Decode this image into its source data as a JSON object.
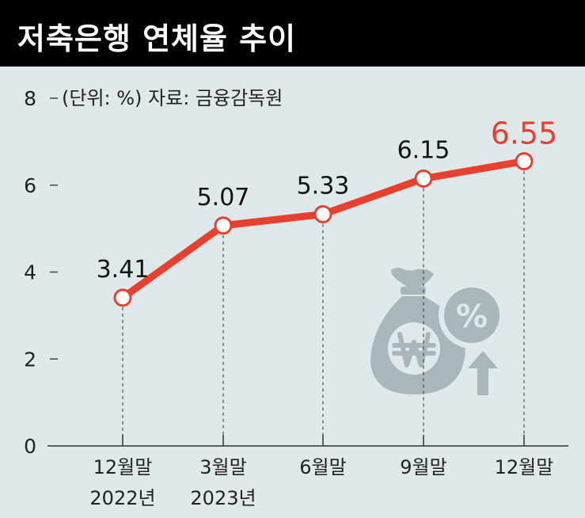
{
  "chart_data": {
    "type": "line",
    "title": "저축은행 연체율 추이",
    "subtitle": "(단위: %) 자료: 금융감독원",
    "categories": [
      [
        "12월말",
        "2022년"
      ],
      [
        "3월말",
        "2023년"
      ],
      [
        "6월말",
        ""
      ],
      [
        "9월말",
        ""
      ],
      [
        "12월말",
        ""
      ]
    ],
    "values": [
      3.41,
      5.07,
      5.33,
      6.15,
      6.55
    ],
    "value_labels": [
      "3.41",
      "5.07",
      "5.33",
      "6.15",
      "6.55"
    ],
    "yticks": [
      "0",
      "2",
      "4",
      "6",
      "8"
    ],
    "ylim": [
      0,
      8
    ],
    "grid": false,
    "colors": {
      "line": "#e8402d",
      "highlight_label": "#e8402d",
      "icon": "#a9b7ba",
      "background": "#dfe8ea"
    },
    "decoration": "money-bag-won-percent-up-icon"
  }
}
